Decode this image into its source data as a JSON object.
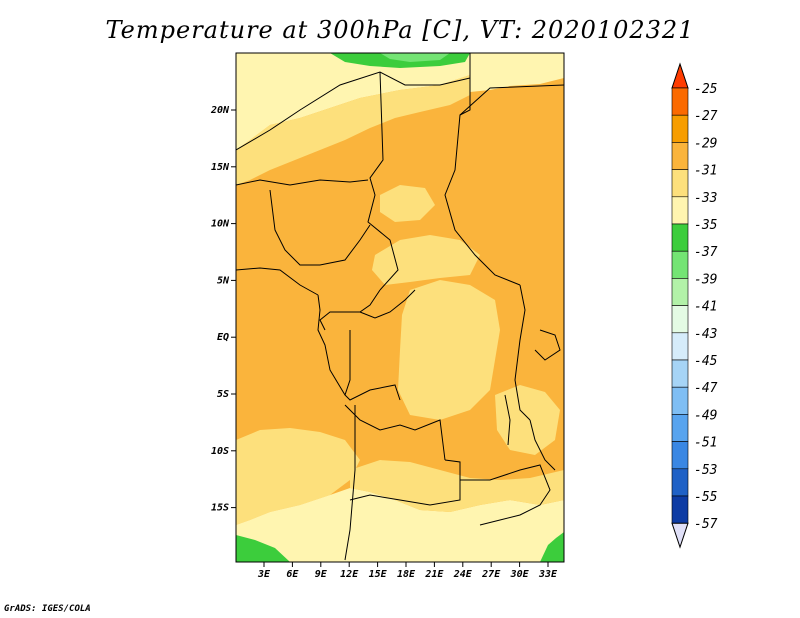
{
  "title": "Temperature at 300hPa [C], VT: 2020102321",
  "footer": "GrADS: IGES/COLA",
  "map": {
    "lat_ticks": [
      "20N",
      "15N",
      "10N",
      "5N",
      "EQ",
      "5S",
      "10S",
      "15S"
    ],
    "lon_ticks": [
      "3E",
      "6E",
      "9E",
      "12E",
      "15E",
      "18E",
      "21E",
      "24E",
      "27E",
      "30E",
      "33E"
    ],
    "colors": {
      "t27_29": "#f8a518",
      "t29_31": "#fab43c",
      "t31_33": "#fde07c",
      "t33_35": "#fff5b0",
      "t35_37": "#3ccd3c",
      "t37_39": "#74e474",
      "border": "#000000"
    }
  },
  "colorbar": {
    "labels": [
      "-25",
      "-27",
      "-29",
      "-31",
      "-33",
      "-35",
      "-37",
      "-39",
      "-41",
      "-43",
      "-45",
      "-47",
      "-49",
      "-51",
      "-53",
      "-55",
      "-57"
    ],
    "colors": [
      "#ff3c00",
      "#fb6a00",
      "#f79d00",
      "#fab43c",
      "#fde07c",
      "#fff5b0",
      "#3ccd3c",
      "#74e474",
      "#b2f2a8",
      "#e4fbe4",
      "#d6ecfa",
      "#a6d4f6",
      "#7fbef4",
      "#58a4ef",
      "#3a87e3",
      "#1f61c6",
      "#0d3ba4",
      "#0a1870"
    ]
  }
}
